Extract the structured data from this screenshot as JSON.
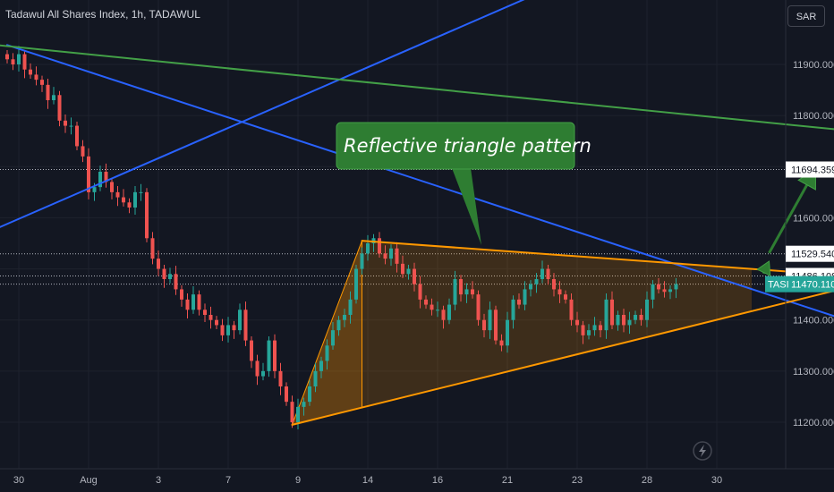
{
  "header": {
    "title": "Tadawul All Shares Index, 1h, TADAWUL",
    "currency_button": "SAR"
  },
  "colors": {
    "background": "#131722",
    "up": "#26a69a",
    "down": "#ef5350",
    "blue_line": "#2962ff",
    "green_line": "#43a047",
    "triangle": "#ff9800",
    "annotation_bg": "#2e7d32"
  },
  "annotation": {
    "text": "Reflective triangle pattern"
  },
  "icons": {
    "bottom": "lightning-icon"
  },
  "chart_data": {
    "type": "candlestick",
    "symbol": "TASI",
    "ylim": [
      11150,
      11960
    ],
    "yticks": [
      11200,
      11300,
      11400,
      11500,
      11600,
      11700,
      11800,
      11900
    ],
    "ytick_labels": [
      "11200.000",
      "11300.000",
      "11400.000",
      "",
      "11600.000",
      "",
      "11800.000",
      "11900.000"
    ],
    "xticks": [
      {
        "label": "30",
        "bar": 2
      },
      {
        "label": "Aug",
        "bar": 14
      },
      {
        "label": "3",
        "bar": 26
      },
      {
        "label": "7",
        "bar": 38
      },
      {
        "label": "9",
        "bar": 50
      },
      {
        "label": "14",
        "bar": 62
      },
      {
        "label": "16",
        "bar": 74
      },
      {
        "label": "21",
        "bar": 86
      },
      {
        "label": "23",
        "bar": 98
      },
      {
        "label": "28",
        "bar": 110
      },
      {
        "label": "30",
        "bar": 122
      }
    ],
    "price_labels": [
      {
        "value": 11694.359,
        "text": "11694.359",
        "style": "white"
      },
      {
        "value": 11529.54,
        "text": "11529.540",
        "style": "white"
      },
      {
        "value": 11486.108,
        "text": "11486.108",
        "style": "white"
      },
      {
        "value": 11470.11,
        "text": "11470.110",
        "style": "last",
        "tag": "TASI"
      }
    ],
    "closes": [
      11910,
      11900,
      11920,
      11890,
      11880,
      11870,
      11860,
      11830,
      11840,
      11790,
      11780,
      11780,
      11740,
      11720,
      11650,
      11660,
      11690,
      11670,
      11650,
      11640,
      11630,
      11620,
      11650,
      11650,
      11560,
      11520,
      11500,
      11480,
      11490,
      11460,
      11440,
      11420,
      11450,
      11420,
      11410,
      11400,
      11390,
      11370,
      11390,
      11380,
      11420,
      11360,
      11320,
      11290,
      11300,
      11360,
      11300,
      11270,
      11240,
      11200,
      11230,
      11240,
      11270,
      11300,
      11320,
      11350,
      11380,
      11400,
      11410,
      11440,
      11500,
      11530,
      11550,
      11560,
      11530,
      11520,
      11540,
      11510,
      11490,
      11500,
      11470,
      11440,
      11430,
      11420,
      11420,
      11400,
      11430,
      11480,
      11450,
      11460,
      11450,
      11400,
      11380,
      11420,
      11360,
      11350,
      11400,
      11440,
      11430,
      11460,
      11470,
      11480,
      11500,
      11480,
      11460,
      11450,
      11440,
      11400,
      11390,
      11370,
      11380,
      11390,
      11380,
      11440,
      11390,
      11410,
      11390,
      11400,
      11410,
      11400,
      11440,
      11470,
      11460,
      11455,
      11460,
      11470
    ],
    "trendlines": [
      {
        "name": "blue-upper",
        "color": "#2962ff",
        "from": {
          "bar": 0,
          "value": 11938
        },
        "to": {
          "bar": 145,
          "value": 11397
        }
      },
      {
        "name": "blue-rising",
        "color": "#2962ff",
        "from": {
          "bar": -2,
          "value": 11578
        },
        "to": {
          "bar": 140,
          "value": 12280
        }
      },
      {
        "name": "green-line",
        "color": "#43a047",
        "from": {
          "bar": -2,
          "value": 11938
        },
        "to": {
          "bar": 145,
          "value": 11770
        }
      },
      {
        "name": "triangle-top",
        "color": "#ff9800",
        "from": {
          "bar": 61,
          "value": 11555
        },
        "to": {
          "bar": 145,
          "value": 11486
        }
      },
      {
        "name": "triangle-bottom",
        "color": "#ff9800",
        "from": {
          "bar": 49,
          "value": 11195
        },
        "to": {
          "bar": 145,
          "value": 11465
        }
      }
    ],
    "horizontal_levels": [
      11694.359,
      11529.54,
      11486.108,
      11470.11
    ],
    "breakout_arrows": [
      {
        "from": {
          "bar": 131,
          "value": 11531
        },
        "to": {
          "bar": 139,
          "value": 11695
        }
      },
      {
        "from": {
          "bar": 130,
          "value": 11491
        },
        "to": {
          "bar": 131,
          "value": 11515
        }
      }
    ]
  }
}
